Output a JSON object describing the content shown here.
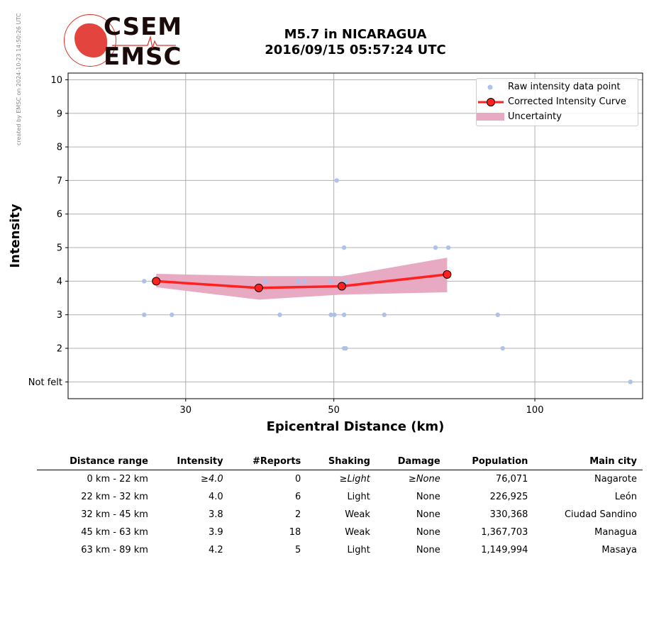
{
  "credit": "created by EMSC on 2024-10-23 14:50:26 UTC",
  "logo": {
    "line1": "CSEM",
    "line2": "EMSC"
  },
  "title": {
    "line1": "M5.7 in NICARAGUA",
    "line2": "2016/09/15 05:57:24 UTC"
  },
  "colors": {
    "raw": "#aec1ea",
    "curve": "#ff2020",
    "marker": "#ff2020",
    "uncertainty": "#e8a9c3",
    "grid": "#b0b0b0"
  },
  "chart_data": {
    "type": "scatter",
    "xlabel": "Epicentral Distance (km)",
    "ylabel": "Intensity",
    "xscale": "log",
    "xlim": [
      20,
      145
    ],
    "ylim": [
      0.5,
      10.2
    ],
    "xticks": [
      {
        "value": 30,
        "label": "30"
      },
      {
        "value": 50,
        "label": "50"
      },
      {
        "value": 100,
        "label": "100"
      }
    ],
    "yticks": [
      {
        "value": 1,
        "label": "Not felt"
      },
      {
        "value": 2,
        "label": "2"
      },
      {
        "value": 3,
        "label": "3"
      },
      {
        "value": 4,
        "label": "4"
      },
      {
        "value": 5,
        "label": "5"
      },
      {
        "value": 6,
        "label": "6"
      },
      {
        "value": 7,
        "label": "7"
      },
      {
        "value": 8,
        "label": "8"
      },
      {
        "value": 9,
        "label": "9"
      },
      {
        "value": 10,
        "label": "10"
      }
    ],
    "grid": true,
    "legend_position": "top-right",
    "series": [
      {
        "name": "Raw intensity data point",
        "kind": "scatter",
        "points": [
          [
            26,
            4
          ],
          [
            26,
            3
          ],
          [
            28.6,
            3
          ],
          [
            39.5,
            4
          ],
          [
            41.5,
            3
          ],
          [
            44.2,
            4
          ],
          [
            45.2,
            4
          ],
          [
            49.5,
            3
          ],
          [
            50.1,
            3
          ],
          [
            50.5,
            7
          ],
          [
            51.8,
            5
          ],
          [
            51.8,
            3
          ],
          [
            51.8,
            2
          ],
          [
            52.1,
            2
          ],
          [
            49.5,
            4
          ],
          [
            52.1,
            4
          ],
          [
            59.5,
            3
          ],
          [
            71,
            5
          ],
          [
            74.2,
            5
          ],
          [
            88,
            3
          ],
          [
            89.5,
            2
          ],
          [
            139,
            1
          ]
        ]
      },
      {
        "name": "Corrected Intensity Curve",
        "kind": "line",
        "points": [
          [
            27.1,
            4.0
          ],
          [
            38.6,
            3.8
          ],
          [
            51.4,
            3.85
          ],
          [
            73.9,
            4.2
          ]
        ]
      },
      {
        "name": "Uncertainty",
        "kind": "band",
        "upper": [
          [
            27.1,
            4.22
          ],
          [
            38.6,
            4.15
          ],
          [
            51.4,
            4.15
          ],
          [
            73.9,
            4.7
          ]
        ],
        "lower": [
          [
            27.1,
            3.82
          ],
          [
            38.6,
            3.45
          ],
          [
            51.4,
            3.6
          ],
          [
            73.9,
            3.67
          ]
        ]
      }
    ]
  },
  "table": {
    "headers": [
      "Distance range",
      "Intensity",
      "#Reports",
      "Shaking",
      "Damage",
      "Population",
      "Main city"
    ],
    "rows": [
      {
        "range": "0 km -   22 km",
        "intensity": "≥4.0",
        "reports": "0",
        "shaking": "≥Light",
        "damage": "≥None",
        "population": "76,071",
        "city": "Nagarote"
      },
      {
        "range": "22 km -   32 km",
        "intensity": "4.0",
        "reports": "6",
        "shaking": "Light",
        "damage": "None",
        "population": "226,925",
        "city": "León"
      },
      {
        "range": "32 km -   45 km",
        "intensity": "3.8",
        "reports": "2",
        "shaking": "Weak",
        "damage": "None",
        "population": "330,368",
        "city": "Ciudad Sandino"
      },
      {
        "range": "45 km -   63 km",
        "intensity": "3.9",
        "reports": "18",
        "shaking": "Weak",
        "damage": "None",
        "population": "1,367,703",
        "city": "Managua"
      },
      {
        "range": "63 km -   89 km",
        "intensity": "4.2",
        "reports": "5",
        "shaking": "Light",
        "damage": "None",
        "population": "1,149,994",
        "city": "Masaya"
      }
    ]
  }
}
